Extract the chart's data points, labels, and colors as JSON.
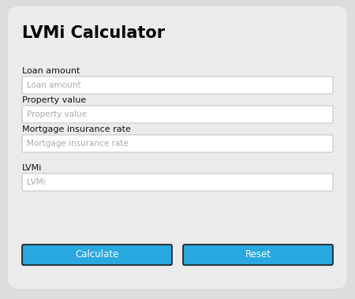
{
  "title": "LVMi Calculator",
  "title_fontsize": 15,
  "title_fontweight": "bold",
  "title_color": "#000000",
  "bg_color": "#dcdcdc",
  "card_color": "#ebebeb",
  "field_bg": "#ffffff",
  "field_border": "#c0c0c0",
  "field_text_color": "#aaaaaa",
  "label_color": "#111111",
  "label_fontsize": 8,
  "field_fontsize": 7.5,
  "fields": [
    {
      "label": "Loan amount",
      "placeholder": "Loan amount"
    },
    {
      "label": "Property value",
      "placeholder": "Property value"
    },
    {
      "label": "Mortgage insurance rate",
      "placeholder": "Mortgage insurance rate"
    }
  ],
  "result_label": "LVMi",
  "result_placeholder": "LVMi",
  "btn_calculate_color": "#29a8e0",
  "btn_reset_color": "#29a8e0",
  "btn_text_color": "#ffffff",
  "btn_calculate_label": "Calculate",
  "btn_reset_label": "Reset",
  "btn_fontsize": 8.5,
  "btn_border_color": "#1a1a1a"
}
